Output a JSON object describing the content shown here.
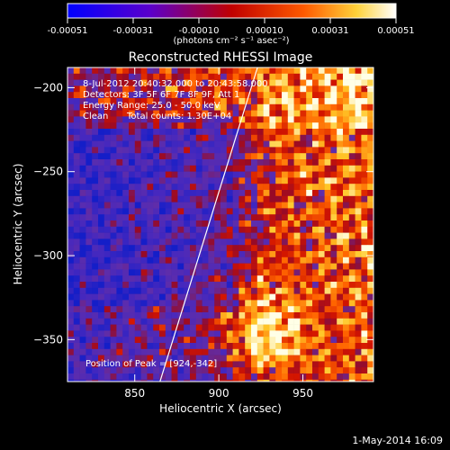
{
  "colorbar": {
    "ticks": [
      "-0.00051",
      "-0.00031",
      "-0.00010",
      "0.00010",
      "0.00031",
      "0.00051"
    ],
    "units": "(photons cm⁻² s⁻¹ asec⁻²)",
    "colors": [
      "#0000ff",
      "#6a00c8",
      "#cc0000",
      "#ff6a00",
      "#ffe040",
      "#ffffff"
    ]
  },
  "annotations": {
    "line1": "8-Jul-2012 20:40:32.000 to 20:43:58.000",
    "line2": "Detectors: 3F 5F 6F 7F 8F 9F, Att 1",
    "line3": "Energy Range: 25.0 - 50.0 keV",
    "line4_left": "Clean",
    "line4_right": "Total counts: 1.30E+04",
    "peak": "Position of Peak = [924,-342]"
  },
  "footer": {
    "date": "1-May-2014 16:09"
  },
  "chart_data": {
    "type": "heatmap",
    "title": "Reconstructed RHESSI Image",
    "xlabel": "Heliocentric X (arcsec)",
    "ylabel": "Heliocentric Y (arcsec)",
    "xlim": [
      810,
      992
    ],
    "ylim": [
      -375,
      -188
    ],
    "x_ticks": [
      850,
      900,
      950
    ],
    "y_ticks": [
      -200,
      -250,
      -300,
      -350
    ],
    "value_range": [
      -0.00051,
      0.00051
    ],
    "limb_line": [
      [
        865,
        -375
      ],
      [
        923,
        -188
      ]
    ],
    "peak": [
      924,
      -342
    ]
  }
}
